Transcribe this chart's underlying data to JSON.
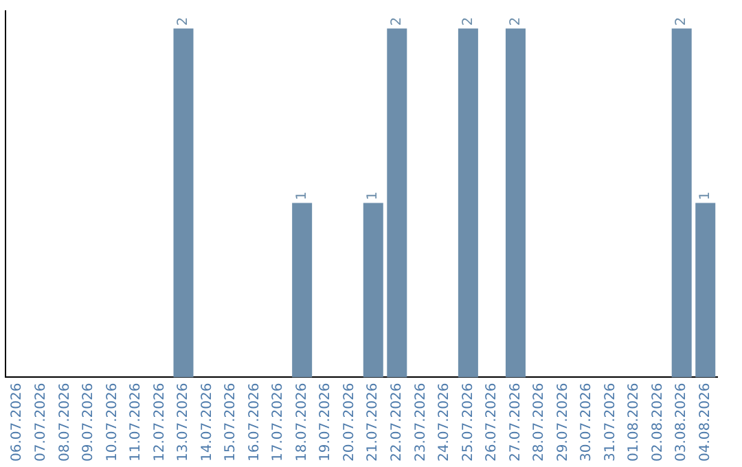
{
  "chart_data": {
    "type": "bar",
    "categories": [
      "06.07.2026",
      "07.07.2026",
      "08.07.2026",
      "09.07.2026",
      "10.07.2026",
      "11.07.2026",
      "12.07.2026",
      "13.07.2026",
      "14.07.2026",
      "15.07.2026",
      "16.07.2026",
      "17.07.2026",
      "18.07.2026",
      "19.07.2026",
      "20.07.2026",
      "21.07.2026",
      "22.07.2026",
      "23.07.2026",
      "24.07.2026",
      "25.07.2026",
      "26.07.2026",
      "27.07.2026",
      "28.07.2026",
      "29.07.2026",
      "30.07.2026",
      "31.07.2026",
      "01.08.2026",
      "02.08.2026",
      "03.08.2026",
      "04.08.2026"
    ],
    "values": [
      0,
      0,
      0,
      0,
      0,
      0,
      0,
      2,
      0,
      0,
      0,
      0,
      1,
      0,
      0,
      1,
      2,
      0,
      0,
      2,
      0,
      2,
      0,
      0,
      0,
      0,
      0,
      0,
      2,
      1
    ],
    "value_labels": [
      null,
      null,
      null,
      null,
      null,
      null,
      null,
      "2",
      null,
      null,
      null,
      null,
      "1",
      null,
      null,
      "1",
      "2",
      null,
      null,
      "2",
      null,
      "2",
      null,
      null,
      null,
      null,
      null,
      null,
      "2",
      "1"
    ],
    "color": "#6d8eab",
    "ylim": [
      0,
      2.1
    ],
    "tick_labels": "x",
    "grid": false,
    "legend": false
  }
}
